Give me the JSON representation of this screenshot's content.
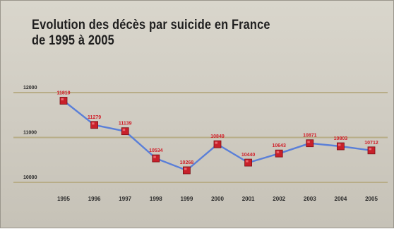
{
  "chart_data": {
    "type": "line",
    "title": "Evolution des décès par suicide en France",
    "subtitle": "de 1995 à 2005",
    "categories": [
      "1995",
      "1996",
      "1997",
      "1998",
      "1999",
      "2000",
      "2001",
      "2002",
      "2003",
      "2004",
      "2005"
    ],
    "values": [
      11819,
      11279,
      11139,
      10534,
      10268,
      10849,
      10440,
      10643,
      10871,
      10803,
      10712
    ],
    "data_labels": [
      "11819",
      "11279",
      "11139",
      "10534",
      "10268",
      "10849",
      "10440",
      "10643",
      "10871",
      "10803",
      "10712"
    ],
    "y_ticks": [
      {
        "value": 12000,
        "label": "12000"
      },
      {
        "value": 11000,
        "label": "11000"
      },
      {
        "value": 10000,
        "label": "10000"
      }
    ],
    "ylim": [
      10000,
      12000
    ],
    "grid": true,
    "colors": {
      "line": "#5a7fd8",
      "marker": "#c8202a",
      "label": "#d0202a",
      "gridline": "#b8ad88"
    }
  }
}
